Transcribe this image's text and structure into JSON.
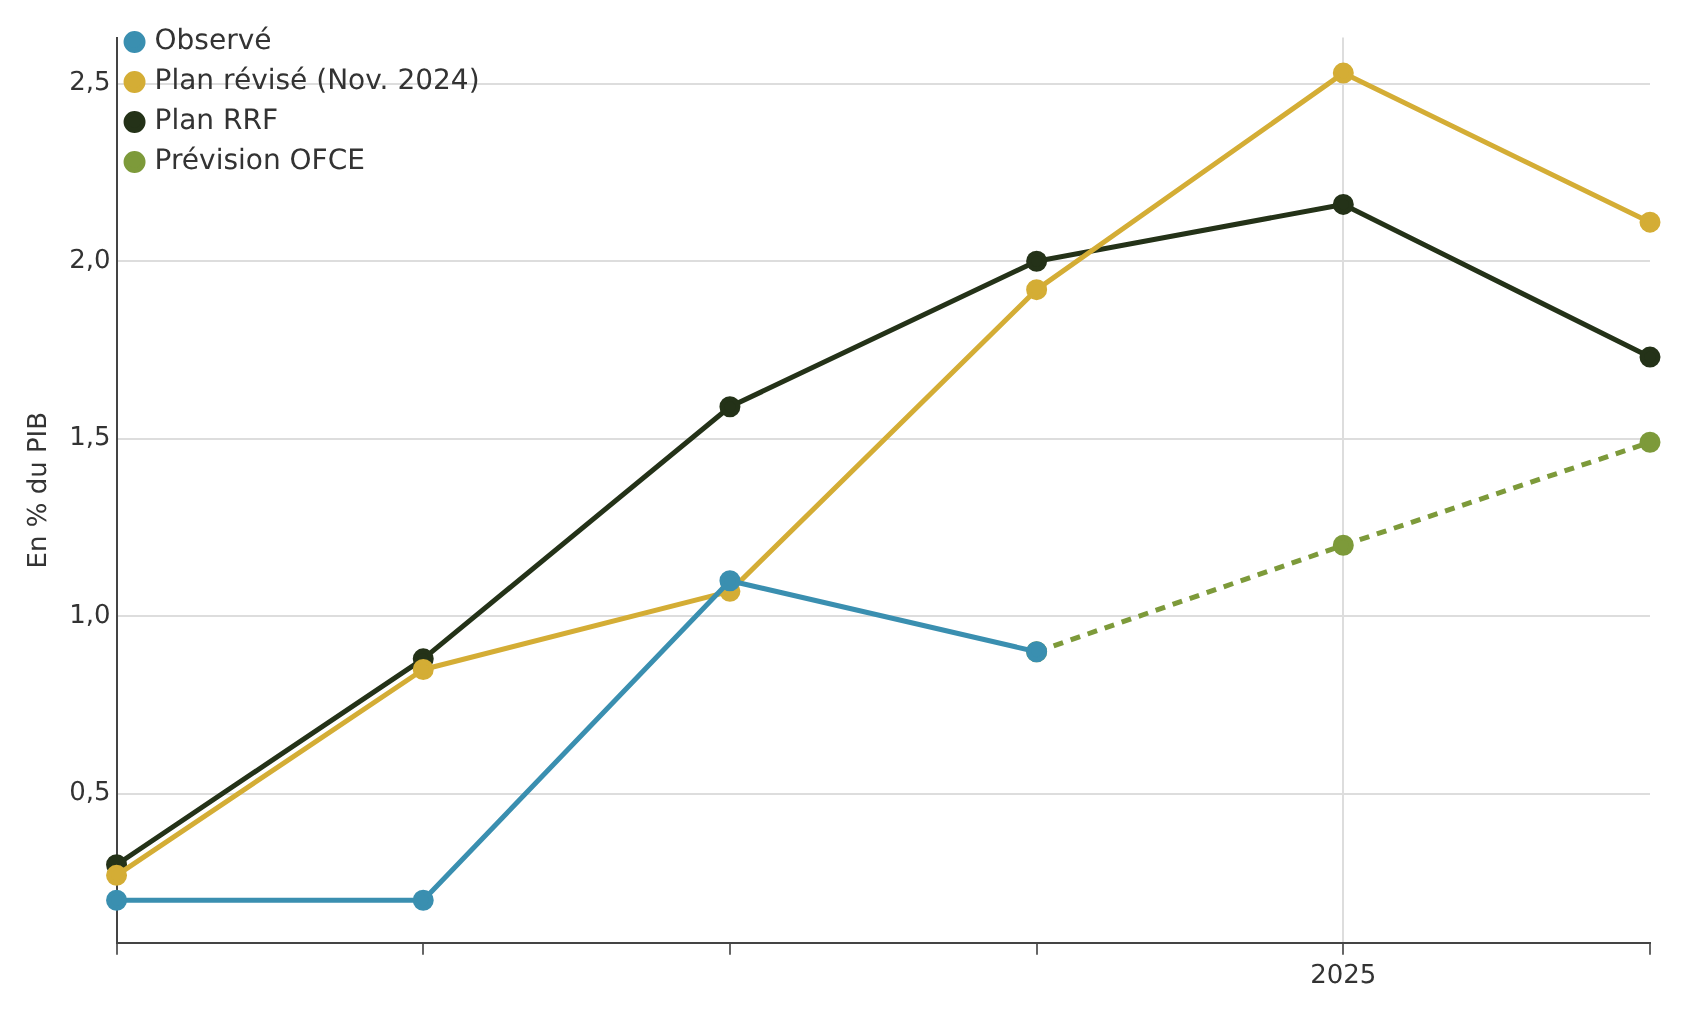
{
  "chart_data": {
    "type": "line",
    "ylabel": "En % du PIB",
    "categories": [
      null,
      null,
      null,
      null,
      "2025",
      null
    ],
    "series": [
      {
        "name": "Observé",
        "color": "#3a8fb0",
        "values": [
          0.2,
          0.2,
          1.1,
          0.9,
          null,
          null
        ]
      },
      {
        "name": "Plan révisé (Nov. 2024)",
        "color": "#d4ad35",
        "values": [
          0.27,
          0.85,
          1.07,
          1.92,
          2.53,
          2.11
        ]
      },
      {
        "name": "Plan RRF",
        "color": "#243218",
        "values": [
          0.3,
          0.88,
          1.59,
          2.0,
          2.16,
          1.73
        ]
      },
      {
        "name": "Prévision OFCE",
        "color": "#7d9a3a",
        "line_style": "dashed",
        "values": [
          null,
          null,
          null,
          0.9,
          1.2,
          1.49
        ]
      }
    ],
    "ylim": [
      0.08,
      2.63
    ],
    "yticks": [
      {
        "value": 0.5,
        "label": "0,5"
      },
      {
        "value": 1,
        "label": "1,0"
      },
      {
        "value": 1.5,
        "label": "1,5"
      },
      {
        "value": 2,
        "label": "2,0"
      },
      {
        "value": 2.5,
        "label": "2,5"
      }
    ],
    "grid": true,
    "legend": "top left",
    "marker": "circle"
  }
}
